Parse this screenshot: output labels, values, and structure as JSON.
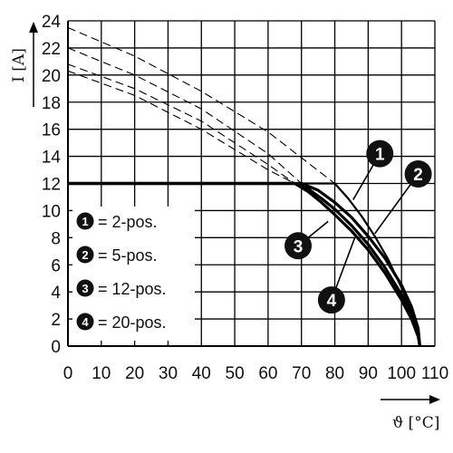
{
  "chart_data": {
    "type": "line",
    "xlabel": "ϑ [°C]",
    "ylabel": "I [A]",
    "xlim": [
      0,
      110
    ],
    "ylim": [
      0,
      24
    ],
    "x_ticks": [
      0,
      10,
      20,
      30,
      40,
      50,
      60,
      70,
      80,
      90,
      100,
      110
    ],
    "y_ticks": [
      0,
      2,
      4,
      6,
      8,
      10,
      12,
      14,
      16,
      18,
      20,
      22,
      24
    ],
    "grid": true,
    "legend_position": "bottom-left",
    "legend": [
      {
        "id": "1",
        "label": "= 2-pos."
      },
      {
        "id": "2",
        "label": "= 5-pos."
      },
      {
        "id": "3",
        "label": "= 12-pos."
      },
      {
        "id": "4",
        "label": "= 20-pos."
      }
    ],
    "series": [
      {
        "id": "1",
        "style": "solid",
        "x": [
          0,
          80,
          84,
          88,
          92,
          96,
          100,
          103,
          105,
          105.5
        ],
        "y": [
          12,
          12,
          10.9,
          9.6,
          8.1,
          6.4,
          4.3,
          2.5,
          0.9,
          0
        ]
      },
      {
        "id": "2",
        "style": "solid",
        "x": [
          0,
          70,
          75,
          80,
          85,
          90,
          95,
          100,
          103,
          105,
          105.5
        ],
        "y": [
          12,
          12,
          11.5,
          10.6,
          9.5,
          8.1,
          6.5,
          4.5,
          2.9,
          1.3,
          0
        ]
      },
      {
        "id": "3",
        "style": "solid",
        "x": [
          0,
          68,
          72,
          76,
          80,
          85,
          90,
          95,
          100,
          103,
          105,
          105.5
        ],
        "y": [
          12,
          12,
          11.6,
          10.9,
          10.1,
          8.9,
          7.5,
          5.8,
          3.8,
          2.3,
          0.9,
          0
        ]
      },
      {
        "id": "4",
        "style": "solid",
        "x": [
          0,
          68,
          72,
          76,
          80,
          85,
          90,
          95,
          100,
          103,
          105,
          105.5
        ],
        "y": [
          12,
          12,
          11.4,
          10.6,
          9.7,
          8.5,
          7.1,
          5.4,
          3.4,
          2.0,
          0.7,
          0
        ]
      },
      {
        "id": "1-derating",
        "style": "dashed",
        "x": [
          0,
          20,
          40,
          60,
          80
        ],
        "y": [
          23.5,
          21.4,
          18.8,
          15.8,
          12
        ]
      },
      {
        "id": "2-derating",
        "style": "dashed",
        "x": [
          0,
          20,
          40,
          60,
          70
        ],
        "y": [
          22.0,
          20.0,
          17.5,
          14.2,
          12
        ]
      },
      {
        "id": "3-derating",
        "style": "dashed",
        "x": [
          0,
          20,
          40,
          60,
          68
        ],
        "y": [
          20.8,
          19.0,
          16.6,
          13.4,
          12
        ]
      },
      {
        "id": "4-derating",
        "style": "dashed",
        "x": [
          0,
          20,
          40,
          60,
          68
        ],
        "y": [
          20.3,
          18.5,
          16.0,
          13.0,
          12
        ]
      }
    ],
    "callouts": [
      {
        "id": "1",
        "x": 93.5,
        "y": 14.2,
        "tx": 85.5,
        "ty": 10.8
      },
      {
        "id": "2",
        "x": 105,
        "y": 12.7,
        "tx": 92,
        "ty": 8.3
      },
      {
        "id": "3",
        "x": 69,
        "y": 7.4,
        "tx": 78,
        "ty": 9.2
      },
      {
        "id": "4",
        "x": 79,
        "y": 3.4,
        "tx": 86,
        "ty": 8.0
      }
    ]
  },
  "colors": {
    "line": "#000000",
    "grid": "#000000",
    "badge": "#111111",
    "background": "#ffffff"
  }
}
